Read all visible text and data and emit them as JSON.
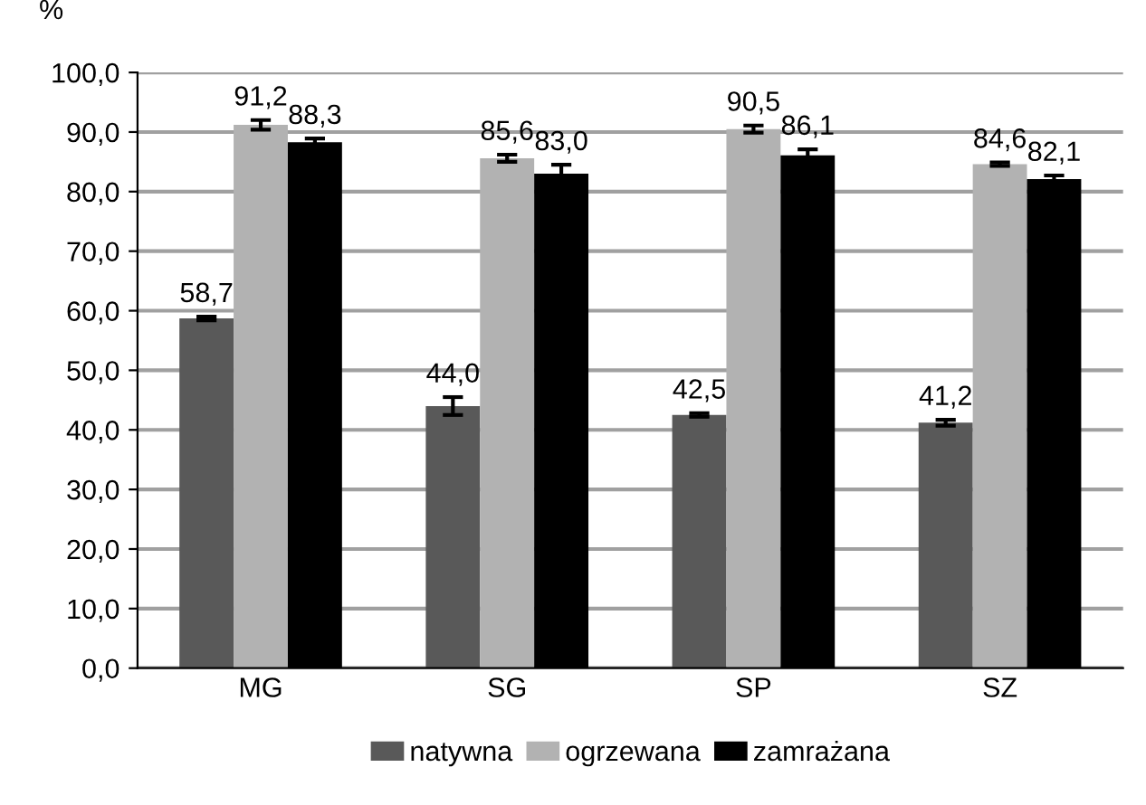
{
  "chart_data": {
    "type": "bar",
    "ylabel": "%",
    "categories": [
      "MG",
      "SG",
      "SP",
      "SZ"
    ],
    "series": [
      {
        "name": "natywna",
        "color": "#595959",
        "values": [
          58.7,
          44.0,
          42.5,
          41.2
        ],
        "errors": [
          0.3,
          1.5,
          0.3,
          0.5
        ],
        "value_labels": [
          "58,7",
          "44,0",
          "42,5",
          "41,2"
        ]
      },
      {
        "name": "ogrzewana",
        "color": "#b2b2b2",
        "values": [
          91.2,
          85.6,
          90.5,
          84.6
        ],
        "errors": [
          0.8,
          0.6,
          0.6,
          0.3
        ],
        "value_labels": [
          "91,2",
          "85,6",
          "90,5",
          "84,6"
        ]
      },
      {
        "name": "zamrażana",
        "color": "#000000",
        "values": [
          88.3,
          83.0,
          86.1,
          82.1
        ],
        "errors": [
          0.6,
          1.5,
          1.0,
          0.6
        ],
        "value_labels": [
          "88,3",
          "83,0",
          "86,1",
          "82,1"
        ]
      }
    ],
    "ylim": [
      0,
      100
    ],
    "yticks": [
      {
        "value": 0,
        "label": "0,0"
      },
      {
        "value": 10,
        "label": "10,0"
      },
      {
        "value": 20,
        "label": "20,0"
      },
      {
        "value": 30,
        "label": "30,0"
      },
      {
        "value": 40,
        "label": "40,0"
      },
      {
        "value": 50,
        "label": "50,0"
      },
      {
        "value": 60,
        "label": "60,0"
      },
      {
        "value": 70,
        "label": "70,0"
      },
      {
        "value": 80,
        "label": "80,0"
      },
      {
        "value": 90,
        "label": "90,0"
      },
      {
        "value": 100,
        "label": "100,0"
      }
    ],
    "grid": "y",
    "legend": "bottom"
  }
}
